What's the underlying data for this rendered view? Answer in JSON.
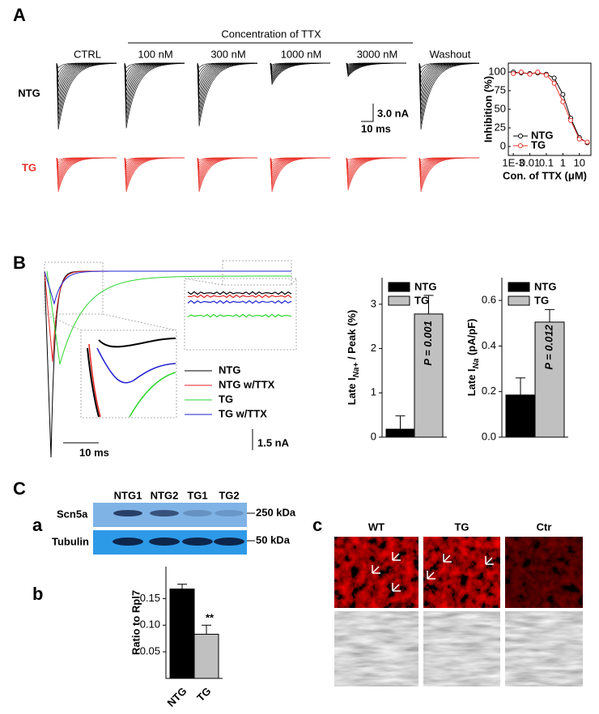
{
  "panel_a": {
    "label": "A",
    "group_label": "Concentration of TTX",
    "conditions": [
      "CTRL",
      "100 nM",
      "300 nM",
      "1000 nM",
      "3000 nM",
      "Washout"
    ],
    "rows": [
      "NTG",
      "TG"
    ],
    "scale_current": "3.0 nA",
    "scale_time": "10 ms",
    "dose_response": {
      "type": "line",
      "ylabel": "Inhibition (%)",
      "xlabel": "Con. of TTX (μM)",
      "log_x": true,
      "xlim": [
        0.0005,
        50
      ],
      "ylim": [
        -12,
        112
      ],
      "xticks": [
        {
          "value": 0.001,
          "label": "1E-3"
        },
        0.01,
        0.1,
        1,
        10
      ],
      "yticks": [
        0,
        25,
        50,
        75,
        100
      ],
      "legend": "lower left",
      "x": [
        0.001,
        0.003,
        0.01,
        0.03,
        0.1,
        0.3,
        1,
        3,
        10,
        30
      ],
      "series": [
        {
          "name": "NTG",
          "color": "#000000",
          "values": [
            100,
            99,
            98,
            99,
            97,
            92,
            70,
            38,
            12,
            5
          ]
        },
        {
          "name": "TG",
          "color": "#e8322a",
          "values": [
            98,
            100,
            97,
            100,
            96,
            85,
            60,
            35,
            10,
            6
          ]
        }
      ]
    }
  },
  "panel_b": {
    "label": "B",
    "legend": [
      {
        "name": "NTG",
        "color": "#000000"
      },
      {
        "name": "NTG w/TTX",
        "color": "#e02020"
      },
      {
        "name": "TG",
        "color": "#2ed42e"
      },
      {
        "name": "TG w/TTX",
        "color": "#2222d0"
      }
    ],
    "scale_time": "10 ms",
    "scale_current": "1.5 nA",
    "charts": [
      {
        "type": "bar",
        "ylabel": [
          "Late I",
          "Na+",
          " / Peak (%)"
        ],
        "categories": [
          "NTG",
          "TG"
        ],
        "values": [
          0.18,
          2.78
        ],
        "errors": [
          0.3,
          0.42
        ],
        "colors": [
          "#000000",
          "#c0c0c0"
        ],
        "ylim": [
          0,
          3.6
        ],
        "yticks": [
          0,
          1,
          2,
          3
        ],
        "annotation": "P = 0.001"
      },
      {
        "type": "bar",
        "ylabel": [
          "Late I",
          "Na",
          " (pA/pF)"
        ],
        "categories": [
          "NTG",
          "TG"
        ],
        "values": [
          0.185,
          0.505
        ],
        "errors": [
          0.075,
          0.055
        ],
        "colors": [
          "#000000",
          "#c0c0c0"
        ],
        "ylim": [
          0,
          0.7
        ],
        "yticks": [
          {
            "value": 0,
            "label": "0.0"
          },
          0.2,
          0.4,
          0.6
        ],
        "annotation": "P = 0.012"
      }
    ]
  },
  "panel_c": {
    "label": "C",
    "sub_a": {
      "label": "a",
      "lanes": [
        "NTG1",
        "NTG2",
        "TG1",
        "TG2"
      ],
      "rows": [
        "Scn5a",
        "Tubulin"
      ],
      "markers": [
        "250 kDa",
        "50 kDa"
      ]
    },
    "sub_b": {
      "label": "b",
      "chart": {
        "type": "bar",
        "ylabel": "Ratio to Rpl7",
        "categories": [
          "NTG",
          "TG"
        ],
        "values": [
          0.168,
          0.083
        ],
        "errors": [
          0.009,
          0.017
        ],
        "colors": [
          "#000000",
          "#c0c0c0"
        ],
        "ylim": [
          0,
          0.21
        ],
        "yticks": [
          0.05,
          {
            "value": 0.1,
            "label": "0.10"
          },
          0.15
        ],
        "annotation": "**"
      }
    },
    "sub_c": {
      "label": "c",
      "columns": [
        "WT",
        "TG",
        "Ctr"
      ]
    }
  }
}
